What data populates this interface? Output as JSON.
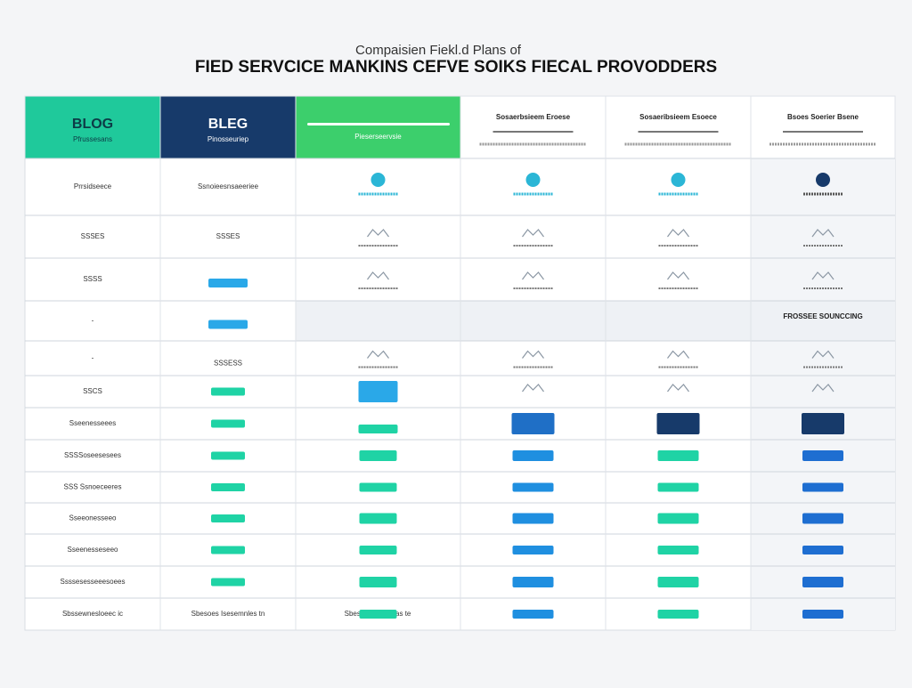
{
  "header": {
    "subtitle": "Compaisien Fiekl.d Plans of",
    "title": "FIED SERVCICE MANKINS CEFVE SOIKS FIECAL PROVODDERS"
  },
  "table": {
    "columns": [
      {
        "title": "BLOG",
        "subtitle": "Pfrussesans"
      },
      {
        "title": "BLEG",
        "subtitle": "Pinosseuriep"
      },
      {
        "subtitle": "Pieserseervsie"
      },
      {
        "title": "Sosaerbsieem Eroese"
      },
      {
        "title": "Sosaeribsieem Esoece"
      },
      {
        "title": "Bsoes Soerier Bsene"
      }
    ],
    "rows": [
      {
        "label": "Prrsidseece",
        "plan": "Ssnoieesnsaeeriee"
      },
      {
        "label": "SSSES",
        "plan": "SSSES"
      },
      {
        "label": "SSSS"
      },
      {
        "label": "-"
      },
      {
        "label": "-",
        "plan": "SSSESS"
      },
      {
        "label": "SSCS"
      },
      {
        "label": "Sseenesseees"
      },
      {
        "label": "SSSSoseesesees"
      },
      {
        "label": "SSS Ssnoeceeres"
      },
      {
        "label": "Sseeonesseeo"
      },
      {
        "label": "Sseenesseseeo"
      },
      {
        "label": "Ssssesesseeesoees"
      },
      {
        "label": "Sbssewnesloeec ic",
        "plan": "Sbesoes Isesemnles tn",
        "offer": "Sbesnoes Ioeseas te"
      }
    ],
    "note": "FROSSEE SOUNCCING"
  }
}
